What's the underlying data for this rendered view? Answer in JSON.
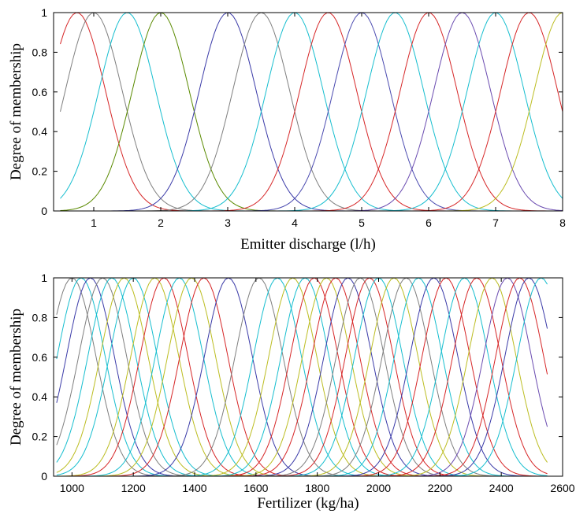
{
  "chart_data": [
    {
      "type": "line",
      "curve_shape": "gaussian",
      "xlabel": "Emitter discharge (l/h)",
      "ylabel": "Degree of membership",
      "xlim": [
        0.4,
        8
      ],
      "ylim": [
        0,
        1
      ],
      "x_ticks": [
        1,
        2,
        3,
        4,
        5,
        6,
        7,
        8
      ],
      "y_ticks": [
        0,
        0.2,
        0.4,
        0.6,
        0.8,
        1
      ],
      "grid": false,
      "sigma": 0.425,
      "x_range": [
        0.5,
        8
      ],
      "series": [
        {
          "center": 0.75,
          "color": "#d62728"
        },
        {
          "center": 1.0,
          "color": "#7f7f7f"
        },
        {
          "center": 1.5,
          "color": "#17becf"
        },
        {
          "center": 2.0,
          "color": "#5a8a00"
        },
        {
          "center": 3.0,
          "color": "#3b3ba8"
        },
        {
          "center": 3.5,
          "color": "#7f7f7f"
        },
        {
          "center": 4.0,
          "color": "#17becf"
        },
        {
          "center": 4.5,
          "color": "#d62728"
        },
        {
          "center": 5.0,
          "color": "#4b4bb0"
        },
        {
          "center": 5.5,
          "color": "#17becf"
        },
        {
          "center": 6.0,
          "color": "#d62728"
        },
        {
          "center": 6.5,
          "color": "#6a4bb0"
        },
        {
          "center": 7.0,
          "color": "#17becf"
        },
        {
          "center": 7.5,
          "color": "#d62728"
        },
        {
          "center": 8.0,
          "color": "#bcbd22"
        }
      ]
    },
    {
      "type": "line",
      "curve_shape": "gaussian",
      "xlabel": "Fertilizer (kg/ha)",
      "ylabel": "Degree of membership",
      "xlim": [
        940,
        2600
      ],
      "ylim": [
        0,
        1
      ],
      "x_ticks": [
        1000,
        1200,
        1400,
        1600,
        1800,
        2000,
        2200,
        2400,
        2600
      ],
      "y_ticks": [
        0,
        0.2,
        0.4,
        0.6,
        0.8,
        1
      ],
      "grid": false,
      "sigma": 78,
      "x_range": [
        950,
        2550
      ],
      "series": [
        {
          "center": 1000,
          "color": "#7f7f7f"
        },
        {
          "center": 1030,
          "color": "#17becf"
        },
        {
          "center": 1060,
          "color": "#3b3ba8"
        },
        {
          "center": 1100,
          "color": "#7f7f7f"
        },
        {
          "center": 1130,
          "color": "#17becf"
        },
        {
          "center": 1170,
          "color": "#bcbd22"
        },
        {
          "center": 1200,
          "color": "#17becf"
        },
        {
          "center": 1270,
          "color": "#bcbd22"
        },
        {
          "center": 1300,
          "color": "#d62728"
        },
        {
          "center": 1350,
          "color": "#17becf"
        },
        {
          "center": 1390,
          "color": "#bcbd22"
        },
        {
          "center": 1430,
          "color": "#d62728"
        },
        {
          "center": 1510,
          "color": "#3b3ba8"
        },
        {
          "center": 1610,
          "color": "#7f7f7f"
        },
        {
          "center": 1670,
          "color": "#17becf"
        },
        {
          "center": 1720,
          "color": "#bcbd22"
        },
        {
          "center": 1760,
          "color": "#17becf"
        },
        {
          "center": 1790,
          "color": "#d62728"
        },
        {
          "center": 1830,
          "color": "#bcbd22"
        },
        {
          "center": 1860,
          "color": "#d62728"
        },
        {
          "center": 1900,
          "color": "#3b3ba8"
        },
        {
          "center": 1940,
          "color": "#7f7f7f"
        },
        {
          "center": 1970,
          "color": "#d62728"
        },
        {
          "center": 2000,
          "color": "#17becf"
        },
        {
          "center": 2050,
          "color": "#bcbd22"
        },
        {
          "center": 2090,
          "color": "#7f7f7f"
        },
        {
          "center": 2130,
          "color": "#17becf"
        },
        {
          "center": 2180,
          "color": "#3b3ba8"
        },
        {
          "center": 2220,
          "color": "#d62728"
        },
        {
          "center": 2280,
          "color": "#17becf"
        },
        {
          "center": 2320,
          "color": "#d62728"
        },
        {
          "center": 2370,
          "color": "#bcbd22"
        },
        {
          "center": 2420,
          "color": "#6a4bb0"
        },
        {
          "center": 2460,
          "color": "#d62728"
        },
        {
          "center": 2490,
          "color": "#3b3ba8"
        },
        {
          "center": 2530,
          "color": "#17becf"
        }
      ]
    }
  ]
}
